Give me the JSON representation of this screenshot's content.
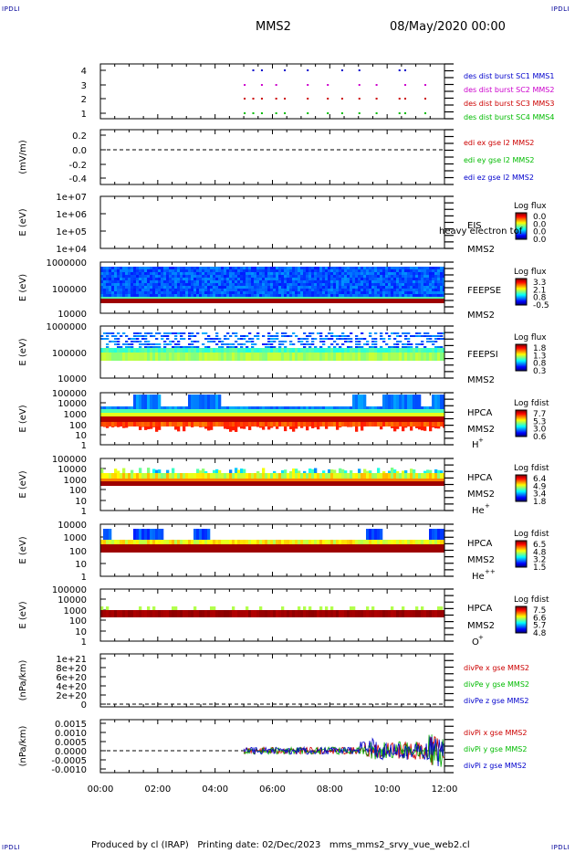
{
  "header": {
    "corner_label": "IPDLI",
    "spacecraft": "MMS2",
    "date": "08/May/2020 00:00"
  },
  "footer": {
    "text": "Produced by cl (IRAP)   Printing date: 02/Dec/2023   mms_mms2_srvy_vue_web2.cl"
  },
  "chart_data": {
    "type": "heatmap",
    "x_ticks": [
      "00:00",
      "02:00",
      "04:00",
      "06:00",
      "08:00",
      "10:00",
      "12:00"
    ],
    "xlim": [
      "00:00",
      "12:00"
    ],
    "panels": [
      {
        "id": "burst",
        "type": "scatter",
        "yticks": [
          "1",
          "2",
          "3",
          "4"
        ],
        "ylim": [
          0.6,
          4.4
        ],
        "right_labels": [
          {
            "text": "des dist burst SC1 MMS1",
            "color": "#0000cc"
          },
          {
            "text": "des dist burst SC2 MMS2",
            "color": "#cc00cc"
          },
          {
            "text": "des dist burst SC3 MMS3",
            "color": "#cc0000"
          },
          {
            "text": "des dist burst SC4 MMS4",
            "color": "#00bb00"
          }
        ],
        "burst_times_hours": [
          5.0,
          5.3,
          5.6,
          6.1,
          6.4,
          7.2,
          7.9,
          8.4,
          9.0,
          9.6,
          10.4,
          10.6,
          11.3
        ],
        "series": [
          {
            "level": 4,
            "color": "#00bb00"
          },
          {
            "level": 3,
            "color": "#cc0000"
          },
          {
            "level": 2,
            "color": "#cc00cc"
          },
          {
            "level": 1,
            "color": "#0000cc"
          }
        ]
      },
      {
        "id": "edi",
        "type": "line",
        "ylabel": "(mV/m)",
        "yticks": [
          "0.2",
          "0.0",
          "-0.2",
          "-0.4"
        ],
        "ylim": [
          -0.5,
          0.3
        ],
        "right_labels": [
          {
            "text": "edi ex gse l2 MMS2",
            "color": "#cc0000"
          },
          {
            "text": "edi ey gse l2 MMS2",
            "color": "#00bb00"
          },
          {
            "text": "edi ez gse l2 MMS2",
            "color": "#0000cc"
          }
        ]
      },
      {
        "id": "eis",
        "type": "heatmap",
        "ylabel": "E (eV)",
        "yticks": [
          "1e+07",
          "1e+06",
          "1e+05",
          "1e+04"
        ],
        "instrument": "EIS",
        "spacecraft": "MMS2",
        "overlap_text": "heavy electron tof",
        "colorbar_title": "Log flux",
        "colorbar_ticks": [
          "0.0",
          "0.0",
          "0.0",
          "0.0"
        ]
      },
      {
        "id": "feepse",
        "type": "heatmap",
        "ylabel": "E (eV)",
        "yticks": [
          "1000000",
          "100000",
          "10000"
        ],
        "instrument": "FEEPSE",
        "spacecraft": "MMS2",
        "colorbar_title": "Log flux",
        "colorbar_ticks": [
          "3.3",
          "2.1",
          "0.8",
          "-0.5"
        ]
      },
      {
        "id": "feepsi",
        "type": "heatmap",
        "ylabel": "E (eV)",
        "yticks": [
          "1000000",
          "100000",
          "10000"
        ],
        "instrument": "FEEPSI",
        "spacecraft": "MMS2",
        "colorbar_title": "Log flux",
        "colorbar_ticks": [
          "1.8",
          "1.3",
          "0.8",
          "0.3"
        ]
      },
      {
        "id": "hpca-h",
        "type": "heatmap",
        "ylabel": "E (eV)",
        "yticks": [
          "100000",
          "10000",
          "1000",
          "100",
          "10",
          "1"
        ],
        "instrument": "HPCA",
        "spacecraft": "MMS2",
        "species": "H",
        "species_sup": "+",
        "colorbar_title": "Log fdist",
        "colorbar_ticks": [
          "7.7",
          "5.3",
          "3.0",
          "0.6"
        ]
      },
      {
        "id": "hpca-he1",
        "type": "heatmap",
        "ylabel": "E (eV)",
        "yticks": [
          "100000",
          "10000",
          "1000",
          "100",
          "10",
          "1"
        ],
        "instrument": "HPCA",
        "spacecraft": "MMS2",
        "species": "He",
        "species_sup": "+",
        "colorbar_title": "Log fdist",
        "colorbar_ticks": [
          "6.4",
          "4.9",
          "3.4",
          "1.8"
        ]
      },
      {
        "id": "hpca-he2",
        "type": "heatmap",
        "ylabel": "E (eV)",
        "yticks": [
          "10000",
          "1000",
          "100",
          "10",
          "1"
        ],
        "instrument": "HPCA",
        "spacecraft": "MMS2",
        "species": "He",
        "species_sup": "++",
        "colorbar_title": "Log fdist",
        "colorbar_ticks": [
          "6.5",
          "4.8",
          "3.2",
          "1.5"
        ]
      },
      {
        "id": "hpca-o",
        "type": "heatmap",
        "ylabel": "E (eV)",
        "yticks": [
          "100000",
          "10000",
          "1000",
          "100",
          "10",
          "1"
        ],
        "instrument": "HPCA",
        "spacecraft": "MMS2",
        "species": "O",
        "species_sup": "+",
        "colorbar_title": "Log fdist",
        "colorbar_ticks": [
          "7.5",
          "6.6",
          "5.7",
          "4.8"
        ]
      },
      {
        "id": "divpe",
        "type": "line",
        "ylabel": "(nPa/km)",
        "yticks": [
          "1e+21",
          "8e+20",
          "6e+20",
          "4e+20",
          "2e+20",
          "0"
        ],
        "ylim": [
          -1e+20,
          1.2e+21
        ],
        "right_labels": [
          {
            "text": "divPe x gse MMS2",
            "color": "#cc0000"
          },
          {
            "text": "divPe y gse MMS2",
            "color": "#00bb00"
          },
          {
            "text": "divPe z gse MMS2",
            "color": "#0000cc"
          }
        ]
      },
      {
        "id": "divpi",
        "type": "line",
        "ylabel": "(nPa/km)",
        "yticks": [
          "0.0015",
          "0.0010",
          "0.0005",
          "0.0000",
          "-0.0005",
          "-0.0010"
        ],
        "ylim": [
          -0.0013,
          0.0018
        ],
        "data_start_hours": 5.0,
        "right_labels": [
          {
            "text": "divPi x gse MMS2",
            "color": "#cc0000"
          },
          {
            "text": "divPi y gse MMS2",
            "color": "#00bb00"
          },
          {
            "text": "divPi z gse MMS2",
            "color": "#0000cc"
          }
        ]
      }
    ]
  }
}
